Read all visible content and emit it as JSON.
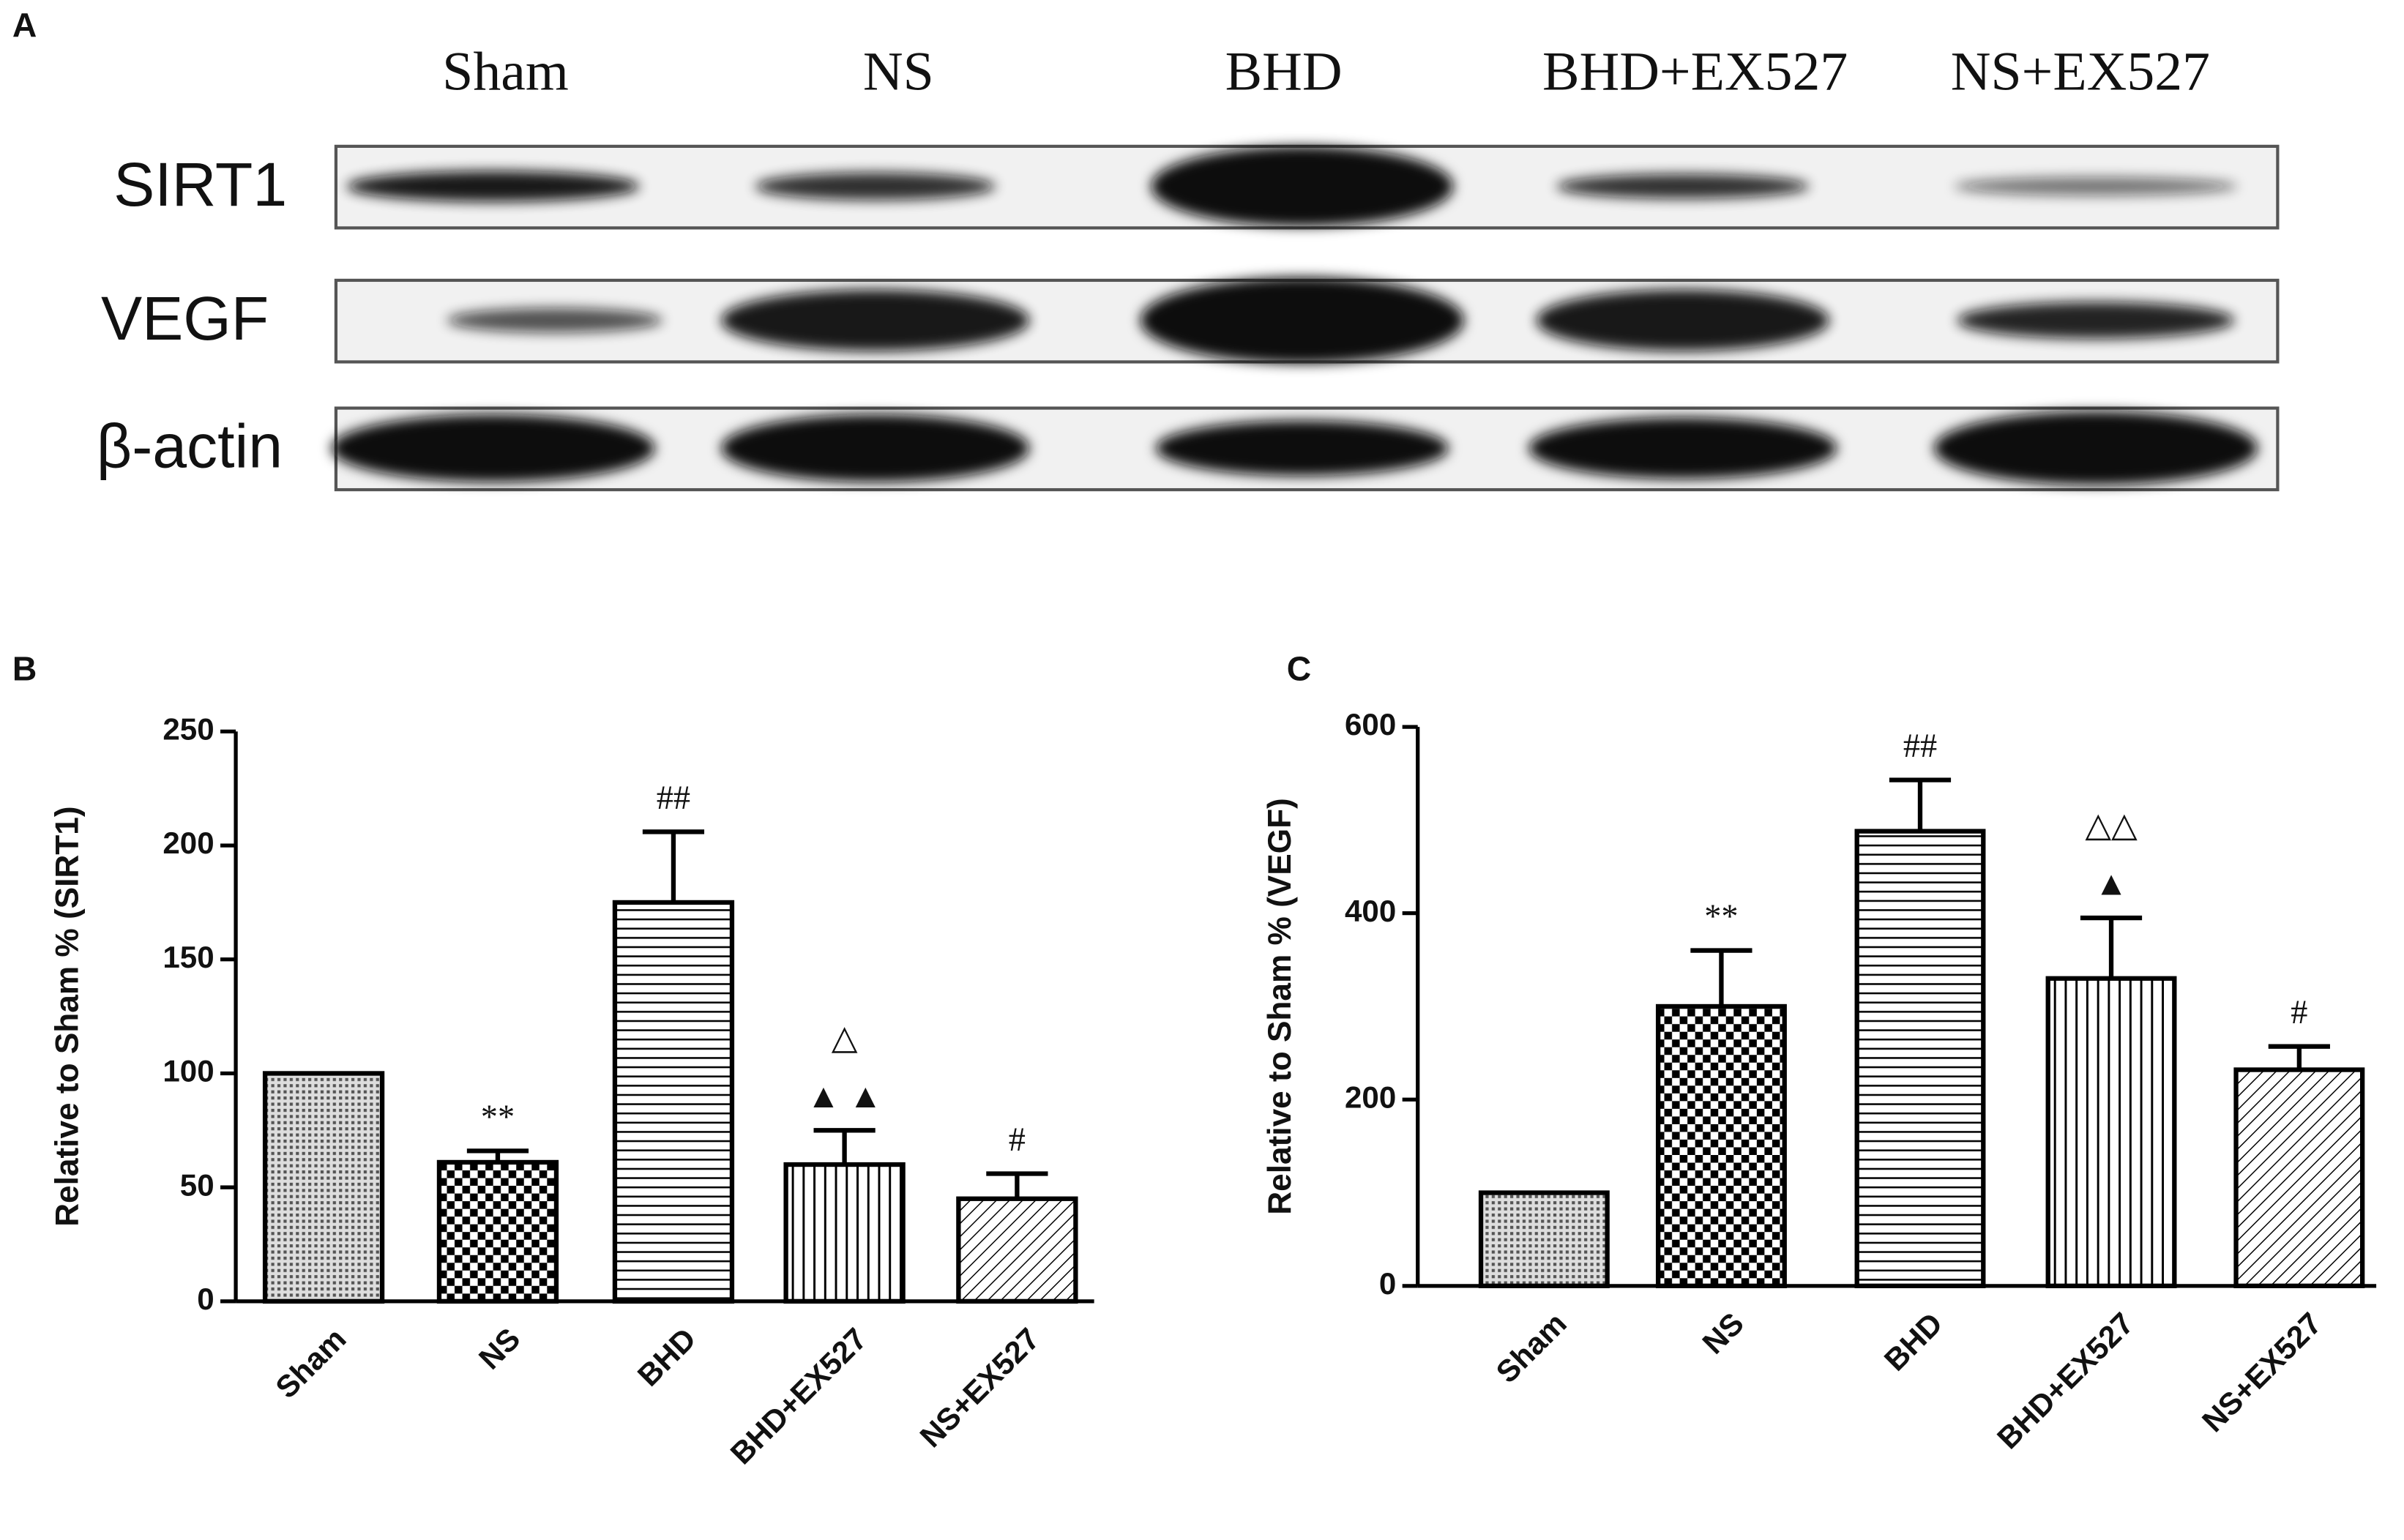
{
  "blot": {
    "label": "A",
    "lanes": [
      "Sham",
      "NS",
      "BHD",
      "BHD+EX527",
      "NS+EX527"
    ],
    "rows": [
      "SIRT1",
      "VEGF",
      "β-actin"
    ]
  },
  "chart_data": [
    {
      "type": "bar",
      "label": "B",
      "y_label": "Relative to Sham % (SIRT1)",
      "categories": [
        "Sham",
        "NS",
        "BHD",
        "BHD+EX527",
        "NS+EX527"
      ],
      "values": [
        100,
        61,
        175,
        60,
        45
      ],
      "errors": [
        null,
        5,
        31,
        15,
        11
      ],
      "patterns": [
        "dots",
        "checker",
        "hlines",
        "vlines",
        "diagonal"
      ],
      "annotations": [
        [],
        [
          "**"
        ],
        [
          "##"
        ],
        [
          "△",
          "▲ ▲"
        ],
        [
          "#"
        ]
      ],
      "ylim": [
        0,
        250
      ],
      "yticks": [
        0,
        50,
        100,
        150,
        200,
        250
      ]
    },
    {
      "type": "bar",
      "label": "C",
      "y_label": "Relative to Sham % (VEGF)",
      "categories": [
        "Sham",
        "NS",
        "BHD",
        "BHD+EX527",
        "NS+EX527"
      ],
      "values": [
        100,
        300,
        488,
        330,
        232
      ],
      "errors": [
        null,
        60,
        55,
        65,
        25
      ],
      "patterns": [
        "dots",
        "checker",
        "hlines",
        "vlines",
        "diagonal"
      ],
      "annotations": [
        [],
        [
          "**"
        ],
        [
          "##"
        ],
        [
          "△△",
          "▲"
        ],
        [
          "#"
        ]
      ],
      "ylim": [
        0,
        600
      ],
      "yticks": [
        0,
        200,
        400,
        600
      ]
    }
  ]
}
